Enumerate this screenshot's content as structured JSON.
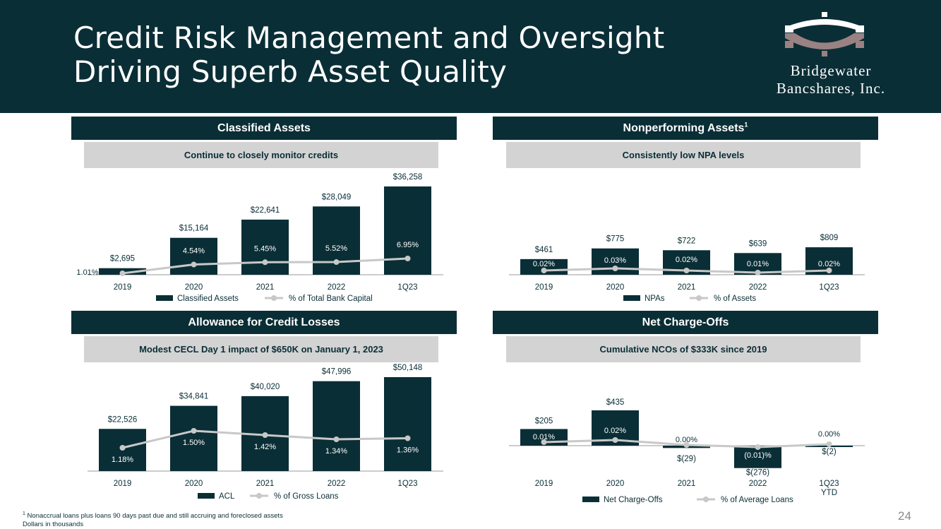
{
  "header": {
    "title_line1": "Credit Risk Management and Oversight",
    "title_line2": "Driving Superb Asset Quality",
    "logo_line1": "Bridgewater",
    "logo_line2": "Bancshares, Inc."
  },
  "colors": {
    "navy": "#0a2e36",
    "gray_band": "#d3d3d3",
    "line": "#c8c8c8"
  },
  "sections": {
    "classified": {
      "title": "Classified Assets",
      "subtitle": "Continue to closely monitor credits"
    },
    "npa": {
      "title": "Nonperforming Assets",
      "title_sup": "1",
      "subtitle": "Consistently low NPA levels"
    },
    "acl": {
      "title": "Allowance for Credit Losses",
      "subtitle": "Modest CECL Day 1 impact of $650K on January 1, 2023"
    },
    "nco": {
      "title": "Net Charge-Offs",
      "subtitle": "Cumulative NCOs of $333K since 2019"
    }
  },
  "chart_data": [
    {
      "id": "classified",
      "type": "bar",
      "categories": [
        "2019",
        "2020",
        "2021",
        "2022",
        "1Q23"
      ],
      "values": [
        2695,
        15164,
        22641,
        28049,
        36258
      ],
      "bar_labels": [
        "$2,695",
        "$15,164",
        "$22,641",
        "$28,049",
        "$36,258"
      ],
      "line_values": [
        1.01,
        4.54,
        5.45,
        5.52,
        6.95
      ],
      "line_labels": [
        "1.01%",
        "4.54%",
        "5.45%",
        "5.52%",
        "6.95%"
      ],
      "legend_bar": "Classified Assets",
      "legend_line": "% of Total Bank Capital",
      "ylim": [
        0,
        36258
      ]
    },
    {
      "id": "npa",
      "type": "bar",
      "categories": [
        "2019",
        "2020",
        "2021",
        "2022",
        "1Q23"
      ],
      "values": [
        461,
        775,
        722,
        639,
        809
      ],
      "bar_labels": [
        "$461",
        "$775",
        "$722",
        "$639",
        "$809"
      ],
      "line_values": [
        0.02,
        0.03,
        0.02,
        0.01,
        0.02
      ],
      "line_labels": [
        "0.02%",
        "0.03%",
        "0.02%",
        "0.01%",
        "0.02%"
      ],
      "legend_bar": "NPAs",
      "legend_line": "% of Assets",
      "ylim": [
        0,
        2600
      ]
    },
    {
      "id": "acl",
      "type": "bar",
      "categories": [
        "2019",
        "2020",
        "2021",
        "2022",
        "1Q23"
      ],
      "values": [
        22526,
        34841,
        40020,
        47996,
        50148
      ],
      "bar_labels": [
        "$22,526",
        "$34,841",
        "$40,020",
        "$47,996",
        "$50,148"
      ],
      "line_values": [
        1.18,
        1.5,
        1.42,
        1.34,
        1.36
      ],
      "line_labels": [
        "1.18%",
        "1.50%",
        "1.42%",
        "1.34%",
        "1.36%"
      ],
      "legend_bar": "ACL",
      "legend_line": "% of Gross Loans",
      "ylim": [
        0,
        50148
      ]
    },
    {
      "id": "nco",
      "type": "bar",
      "categories": [
        "2019",
        "2020",
        "2021",
        "2022",
        "1Q23"
      ],
      "category_sublabels": [
        "",
        "",
        "",
        "",
        "YTD"
      ],
      "values": [
        205,
        435,
        -29,
        -276,
        -2
      ],
      "bar_labels": [
        "$205",
        "$435",
        "$(29)",
        "$(276)",
        "$(2)"
      ],
      "line_values": [
        0.01,
        0.02,
        0.0,
        -0.01,
        0.0
      ],
      "line_labels": [
        "0.01%",
        "0.02%",
        "0.00%",
        "(0.01)%",
        "0.00%"
      ],
      "legend_bar": "Net Charge-Offs",
      "legend_line": "% of Average Loans",
      "ylim": [
        -276,
        435
      ]
    }
  ],
  "footnote": {
    "line1": "Nonaccrual loans plus loans 90 days past due and still accruing and foreclosed assets",
    "line1_sup": "1",
    "line2": "Dollars in thousands"
  },
  "page_number": "24"
}
